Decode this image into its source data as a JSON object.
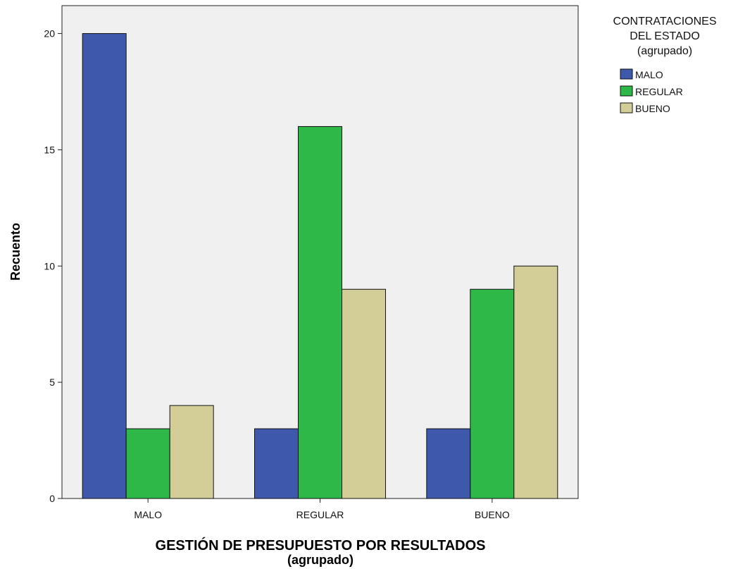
{
  "chart_data": {
    "type": "bar",
    "categories": [
      "MALO",
      "REGULAR",
      "BUENO"
    ],
    "series": [
      {
        "name": "MALO",
        "values": [
          20,
          3,
          3
        ],
        "color": "#3e58ac"
      },
      {
        "name": "REGULAR",
        "values": [
          3,
          16,
          9
        ],
        "color": "#2eb848"
      },
      {
        "name": "BUENO",
        "values": [
          4,
          9,
          10
        ],
        "color": "#d3ce97"
      }
    ],
    "xlabel_line1": "GESTIÓN DE PRESUPUESTO POR RESULTADOS",
    "xlabel_line2": "(agrupado)",
    "ylabel": "Recuento",
    "ylim": [
      0,
      21.2
    ],
    "yticks": [
      0,
      5,
      10,
      15,
      20
    ],
    "grid": false,
    "legend": {
      "title_lines": [
        "CONTRATACIONES",
        "DEL ESTADO",
        "(agrupado)"
      ],
      "placement": "right"
    },
    "plot_background": "#f0f0f0"
  }
}
